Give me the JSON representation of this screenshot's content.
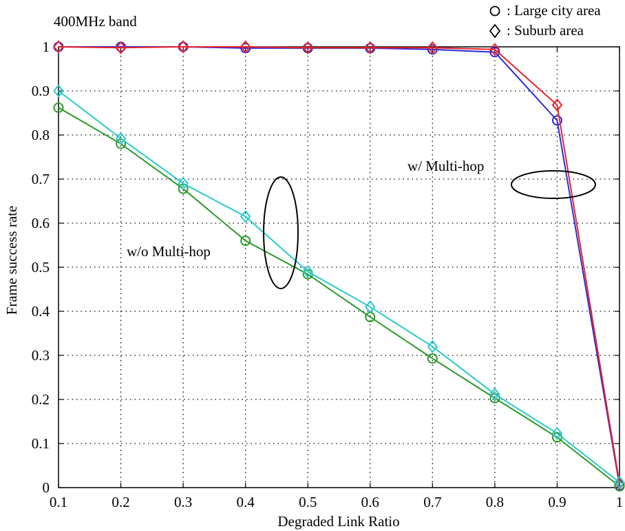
{
  "chart_data": {
    "type": "line",
    "title": "400MHz band",
    "xlabel": "Degraded Link Ratio",
    "ylabel": "Frame success rate",
    "xlim": [
      0.1,
      1.0
    ],
    "ylim": [
      0,
      1.0
    ],
    "x_ticks": [
      "0.1",
      "0.2",
      "0.3",
      "0.4",
      "0.5",
      "0.6",
      "0.7",
      "0.8",
      "0.9",
      "1"
    ],
    "y_ticks": [
      "0",
      "0.1",
      "0.2",
      "0.3",
      "0.4",
      "0.5",
      "0.6",
      "0.7",
      "0.8",
      "0.9",
      "1"
    ],
    "grid": true,
    "legend": {
      "position": "top-right",
      "entries": [
        {
          "marker": "circle",
          "label": ": Large city area"
        },
        {
          "marker": "diamond",
          "label": ": Suburb area"
        }
      ]
    },
    "annotations": [
      {
        "text": "w/ Multi-hop",
        "x": 0.76,
        "y": 0.73
      },
      {
        "text": "w/o Multi-hop",
        "x": 0.3,
        "y": 0.55
      }
    ],
    "x": [
      0.1,
      0.2,
      0.3,
      0.4,
      0.5,
      0.6,
      0.7,
      0.8,
      0.9,
      1.0
    ],
    "series": [
      {
        "color": "#2b2bd9",
        "marker": "circle",
        "values": [
          1.0,
          1.0,
          1.0,
          0.997,
          0.997,
          0.997,
          0.994,
          0.988,
          0.833,
          0.005
        ]
      },
      {
        "color": "#e8232b",
        "marker": "diamond",
        "values": [
          1.0,
          0.998,
          1.0,
          1.0,
          0.998,
          0.998,
          0.998,
          0.994,
          0.868,
          0.01
        ]
      },
      {
        "color": "#2a9a27",
        "marker": "circle",
        "values": [
          0.862,
          0.78,
          0.678,
          0.56,
          0.484,
          0.387,
          0.293,
          0.203,
          0.114,
          0.003
        ]
      },
      {
        "color": "#27c9cc",
        "marker": "diamond",
        "values": [
          0.9,
          0.792,
          0.69,
          0.615,
          0.49,
          0.41,
          0.32,
          0.212,
          0.123,
          0.012
        ]
      }
    ]
  }
}
